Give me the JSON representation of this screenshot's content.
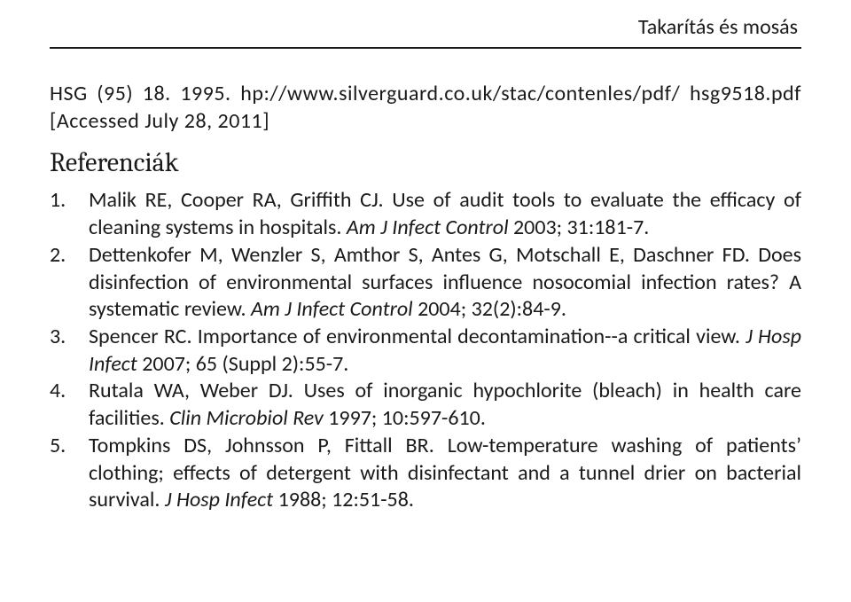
{
  "header": {
    "running_head": "Takarítás és mosás"
  },
  "intro": {
    "line1_a": "HSG (95) 18. 1995. h",
    "line1_b": "p://www.silverguard.co.uk/sta",
    "line1_c": "c/conten",
    "line1_d": "les/pdf/",
    "line2": "hsg9518.pdf [Accessed July 28, 2011]"
  },
  "section_title": "Referenciák",
  "references": [
    {
      "parts": [
        {
          "t": "Malik RE, Cooper RA, Griffith CJ. Use of audit tools to evaluate the efficacy of cleaning systems in hospitals. ",
          "ital": false
        },
        {
          "t": "Am J Infect Control",
          "ital": true
        },
        {
          "t": " 2003; 31:181-7.",
          "ital": false
        }
      ]
    },
    {
      "parts": [
        {
          "t": "Dettenkofer M, Wenzler S, Amthor S, Antes G, Motschall E, Daschner FD. Does disinfection of environmental surfaces influence nosocomial infection rates? A systematic review. ",
          "ital": false
        },
        {
          "t": "Am J Infect Control",
          "ital": true
        },
        {
          "t": " 2004; 32(2):84-9.",
          "ital": false
        }
      ]
    },
    {
      "parts": [
        {
          "t": "Spencer RC. Importance of environmental decontamination--a critical view. ",
          "ital": false
        },
        {
          "t": "J Hosp Infect",
          "ital": true
        },
        {
          "t": " 2007; 65 (Suppl 2):55-7.",
          "ital": false
        }
      ]
    },
    {
      "parts": [
        {
          "t": "Rutala WA, Weber DJ. Uses of inorganic hypochlorite (bleach) in health care facilities. ",
          "ital": false
        },
        {
          "t": "Clin Microbiol Rev",
          "ital": true
        },
        {
          "t": " 1997; 10:597-610.",
          "ital": false
        }
      ]
    },
    {
      "parts": [
        {
          "t": "Tompkins DS, Johnsson P, Fittall BR. Low-temperature washing of patients’ clothing; effects of detergent with disinfectant and a tunnel drier on bacterial survival. ",
          "ital": false
        },
        {
          "t": "J Hosp Infect",
          "ital": true
        },
        {
          "t": " 1988; 12:51-58.",
          "ital": false
        }
      ]
    }
  ]
}
